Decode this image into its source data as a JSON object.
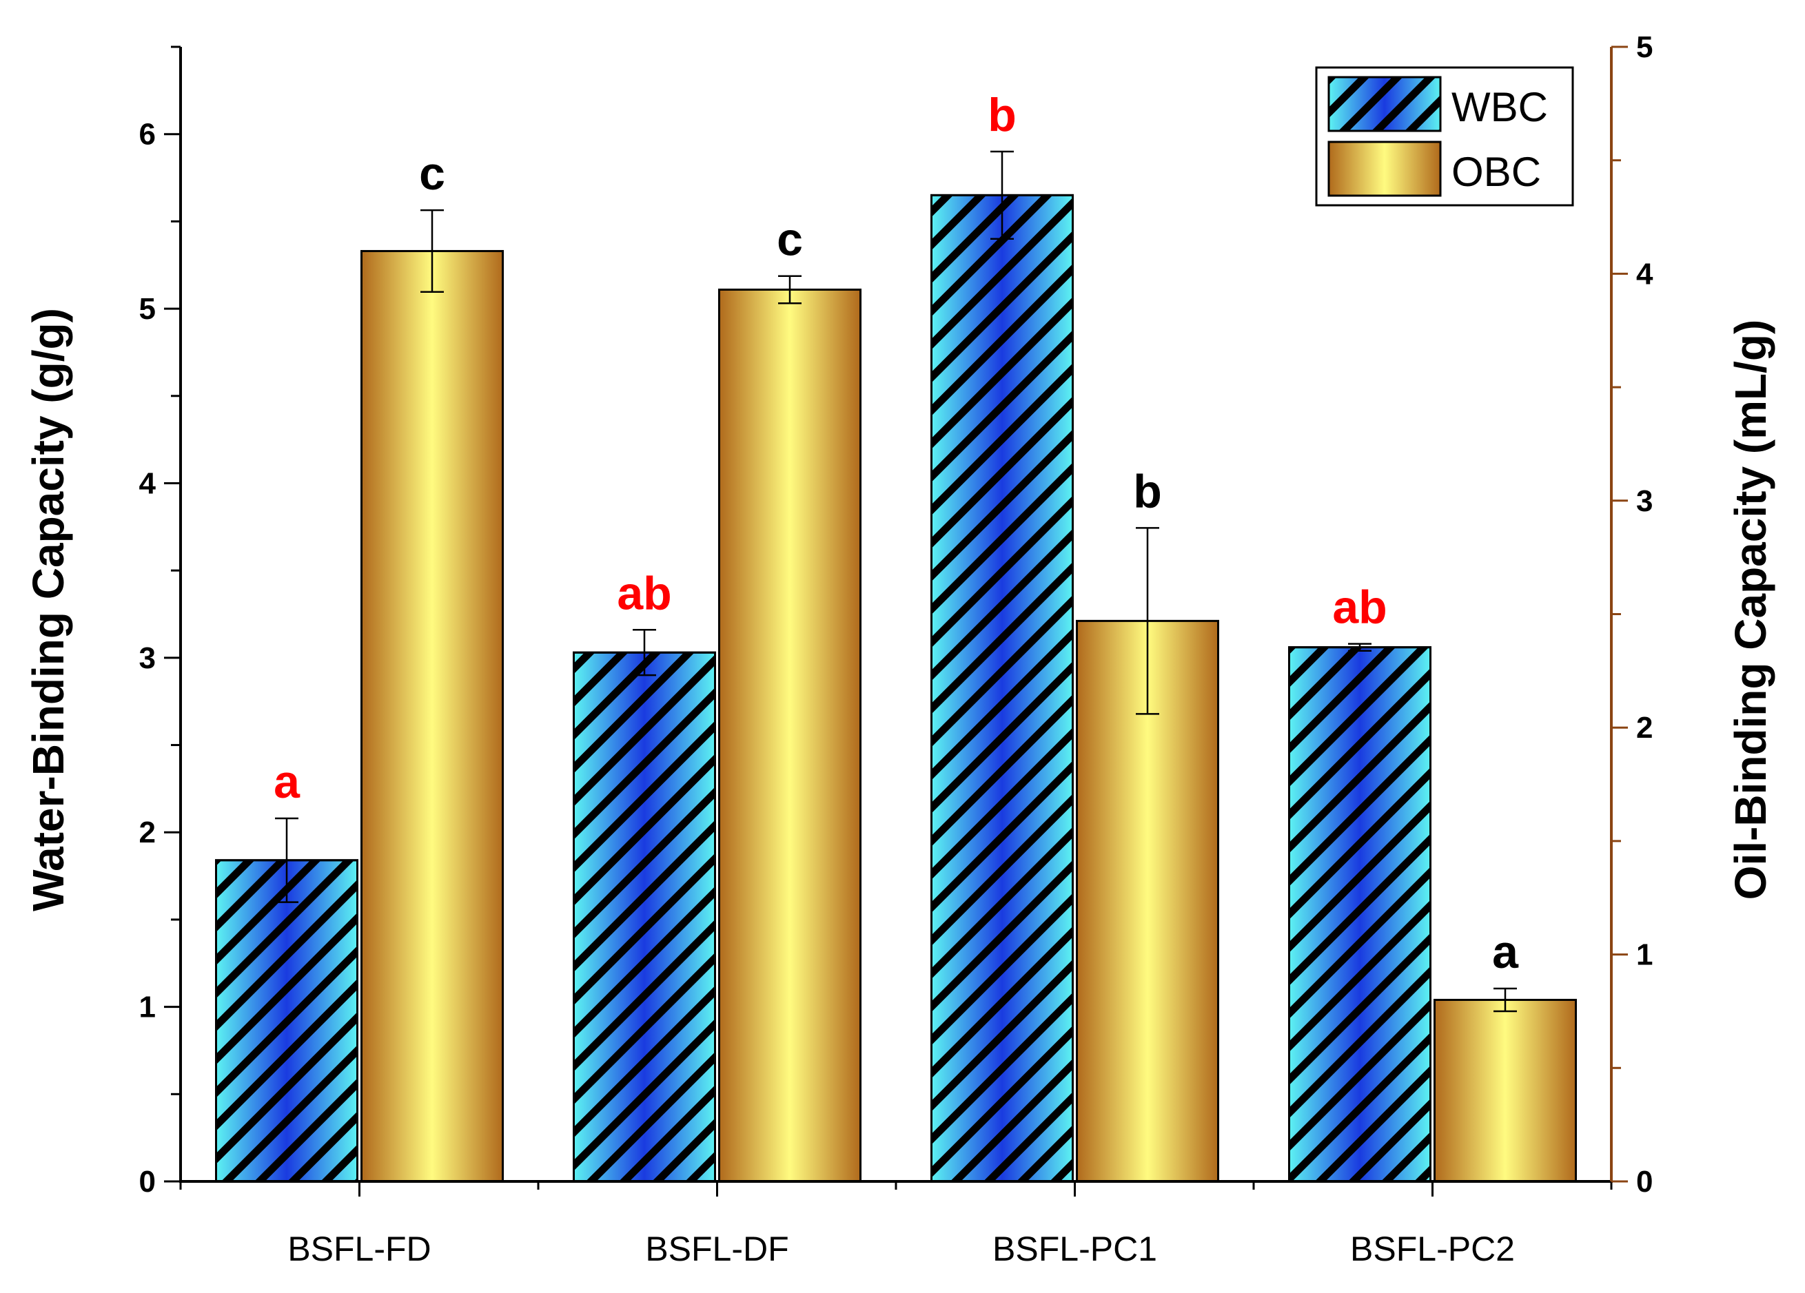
{
  "chart_data": {
    "type": "bar",
    "categories": [
      "BSFL-FD",
      "BSFL-DF",
      "BSFL-PC1",
      "BSFL-PC2"
    ],
    "series": [
      {
        "name": "WBC",
        "axis": "left",
        "values": [
          1.84,
          3.03,
          5.65,
          3.06
        ],
        "errors": [
          0.24,
          0.13,
          0.25,
          0.02
        ],
        "labels": [
          "a",
          "ab",
          "b",
          "ab"
        ],
        "label_color": "#ff0000",
        "colors": {
          "edge": "#5df2f2",
          "mid": "#1a3be0",
          "hatch": "#000000"
        }
      },
      {
        "name": "OBC",
        "axis": "right",
        "values": [
          4.1,
          3.93,
          2.47,
          0.8
        ],
        "errors": [
          0.18,
          0.06,
          0.41,
          0.05
        ],
        "labels": [
          "c",
          "c",
          "b",
          "a"
        ],
        "label_color": "#000000",
        "colors": {
          "edge": "#b06a1c",
          "mid": "#fffb80"
        }
      }
    ],
    "ylabel": "Water-Binding Capacity (g/g)",
    "y2label": "Oil-Binding Capacity (mL/g)",
    "ylim": [
      0,
      6.5
    ],
    "y2lim": [
      0,
      5
    ],
    "yticks": [
      "0",
      "1",
      "2",
      "3",
      "4",
      "5",
      "6"
    ],
    "y2ticks": [
      "0",
      "1",
      "2",
      "3",
      "4",
      "5"
    ],
    "y2_axis_color": "#8b4513",
    "legend": {
      "position": "top-right",
      "entries": [
        "WBC",
        "OBC"
      ]
    },
    "grid": false
  }
}
